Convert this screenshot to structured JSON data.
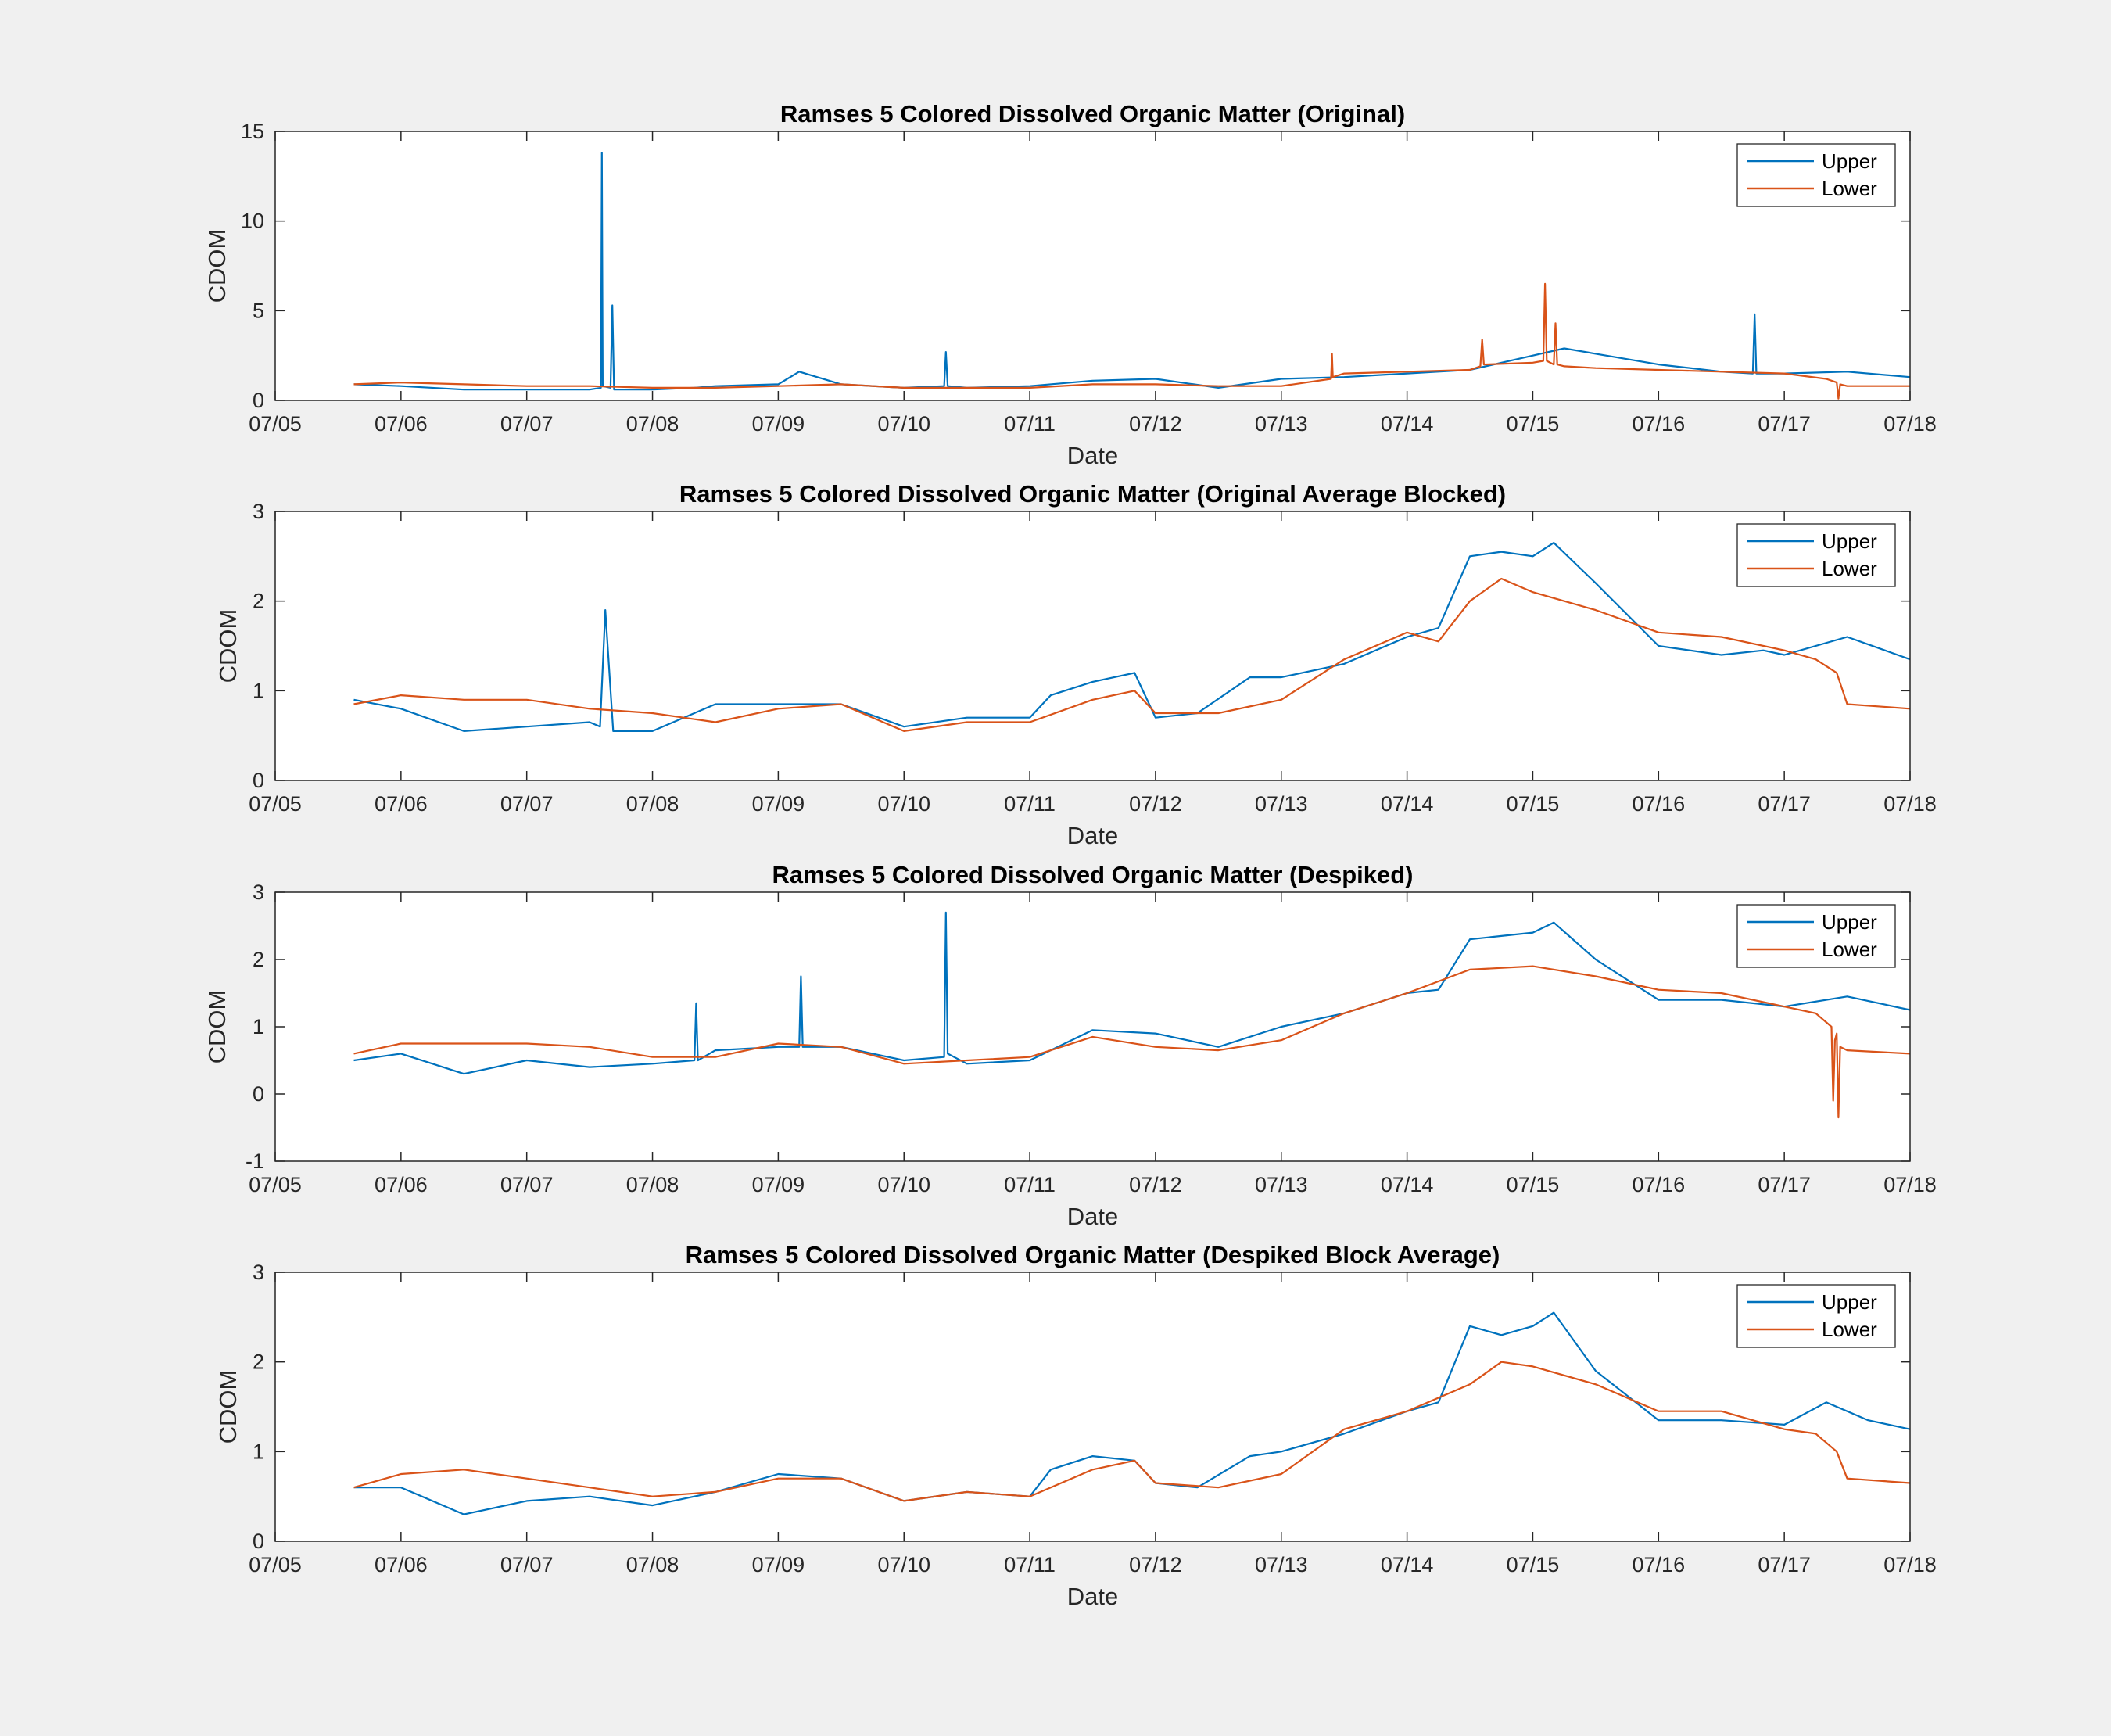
{
  "colors": {
    "upper": "#0072BD",
    "lower": "#D95319",
    "figure_bg": "#f0f0f0",
    "axes_bg": "#ffffff"
  },
  "chart_data": [
    {
      "type": "line",
      "title": "Ramses 5 Colored Dissolved Organic Matter (Original)",
      "xlabel": "Date",
      "ylabel": "CDOM",
      "xlim": [
        "07/05 00:00",
        "07/18 00:00"
      ],
      "xticks": [
        "07/05",
        "07/06",
        "07/07",
        "07/08",
        "07/09",
        "07/10",
        "07/11",
        "07/12",
        "07/13",
        "07/14",
        "07/15",
        "07/16",
        "07/17",
        "07/18"
      ],
      "ylim": [
        0,
        15
      ],
      "yticks": [
        0,
        5,
        10,
        15
      ],
      "grid": false,
      "legend": "top-right",
      "series": [
        {
          "name": "Upper",
          "x": [
            "07/05 15:00",
            "07/06 00:00",
            "07/06 12:00",
            "07/07 00:00",
            "07/07 12:00",
            "07/07 14:10",
            "07/07 14:20",
            "07/07 14:30",
            "07/07 16:00",
            "07/07 16:20",
            "07/07 16:40",
            "07/08 00:00",
            "07/08 08:00",
            "07/08 12:00",
            "07/09 00:00",
            "07/09 04:00",
            "07/09 12:00",
            "07/10 00:00",
            "07/10 07:40",
            "07/10 08:00",
            "07/10 08:20",
            "07/10 12:00",
            "07/11 00:00",
            "07/11 12:00",
            "07/12 00:00",
            "07/12 12:00",
            "07/13 00:00",
            "07/13 12:00",
            "07/14 00:00",
            "07/14 06:00",
            "07/14 12:00",
            "07/15 00:00",
            "07/15 06:00",
            "07/15 12:00",
            "07/16 00:00",
            "07/16 12:00",
            "07/16 18:00",
            "07/16 18:20",
            "07/16 18:40",
            "07/17 00:00",
            "07/17 12:00",
            "07/18 00:00"
          ],
          "y": [
            0.9,
            0.8,
            0.6,
            0.6,
            0.6,
            0.7,
            13.8,
            0.8,
            0.7,
            5.3,
            0.6,
            0.6,
            0.7,
            0.8,
            0.9,
            1.6,
            0.9,
            0.7,
            0.8,
            2.7,
            0.8,
            0.7,
            0.8,
            1.1,
            1.2,
            0.7,
            1.2,
            1.3,
            1.5,
            1.6,
            1.7,
            2.5,
            2.9,
            2.6,
            2.0,
            1.6,
            1.5,
            4.8,
            1.5,
            1.5,
            1.6,
            1.3
          ]
        },
        {
          "name": "Lower",
          "x": [
            "07/05 15:00",
            "07/06 00:00",
            "07/06 12:00",
            "07/07 00:00",
            "07/07 12:00",
            "07/08 00:00",
            "07/08 12:00",
            "07/09 00:00",
            "07/09 12:00",
            "07/10 00:00",
            "07/10 12:00",
            "07/11 00:00",
            "07/11 12:00",
            "07/12 00:00",
            "07/12 12:00",
            "07/13 00:00",
            "07/13 09:30",
            "07/13 09:40",
            "07/13 09:50",
            "07/13 12:00",
            "07/14 00:00",
            "07/14 12:00",
            "07/14 14:00",
            "07/14 14:20",
            "07/14 14:40",
            "07/15 00:00",
            "07/15 02:00",
            "07/15 02:20",
            "07/15 02:40",
            "07/15 04:00",
            "07/15 04:20",
            "07/15 04:40",
            "07/15 06:00",
            "07/15 12:00",
            "07/16 00:00",
            "07/16 12:00",
            "07/17 00:00",
            "07/17 08:00",
            "07/17 10:00",
            "07/17 10:20",
            "07/17 10:40",
            "07/17 12:00",
            "07/18 00:00"
          ],
          "y": [
            0.9,
            1.0,
            0.9,
            0.8,
            0.8,
            0.7,
            0.7,
            0.8,
            0.9,
            0.7,
            0.7,
            0.7,
            0.9,
            0.9,
            0.8,
            0.8,
            1.2,
            2.6,
            1.3,
            1.5,
            1.6,
            1.7,
            1.9,
            3.4,
            2.0,
            2.1,
            2.2,
            6.5,
            2.2,
            2.0,
            4.3,
            2.0,
            1.9,
            1.8,
            1.7,
            1.6,
            1.5,
            1.2,
            1.0,
            0.1,
            0.9,
            0.8,
            0.8
          ]
        }
      ]
    },
    {
      "type": "line",
      "title": "Ramses 5 Colored Dissolved Organic Matter (Original Average Blocked)",
      "xlabel": "Date",
      "ylabel": "CDOM",
      "xlim": [
        "07/05 00:00",
        "07/18 00:00"
      ],
      "xticks": [
        "07/05",
        "07/06",
        "07/07",
        "07/08",
        "07/09",
        "07/10",
        "07/11",
        "07/12",
        "07/13",
        "07/14",
        "07/15",
        "07/16",
        "07/17",
        "07/18"
      ],
      "ylim": [
        0,
        3
      ],
      "yticks": [
        0,
        1,
        2,
        3
      ],
      "grid": false,
      "legend": "top-right",
      "series": [
        {
          "name": "Upper",
          "x": [
            "07/05 15:00",
            "07/06 00:00",
            "07/06 12:00",
            "07/07 00:00",
            "07/07 12:00",
            "07/07 14:00",
            "07/07 15:00",
            "07/07 16:30",
            "07/08 00:00",
            "07/08 12:00",
            "07/09 00:00",
            "07/09 12:00",
            "07/10 00:00",
            "07/10 12:00",
            "07/11 00:00",
            "07/11 04:00",
            "07/11 12:00",
            "07/11 20:00",
            "07/12 00:00",
            "07/12 08:00",
            "07/12 18:00",
            "07/13 00:00",
            "07/13 12:00",
            "07/14 00:00",
            "07/14 06:00",
            "07/14 12:00",
            "07/14 18:00",
            "07/15 00:00",
            "07/15 04:00",
            "07/15 12:00",
            "07/16 00:00",
            "07/16 12:00",
            "07/16 20:00",
            "07/17 00:00",
            "07/17 12:00",
            "07/18 00:00"
          ],
          "y": [
            0.9,
            0.8,
            0.55,
            0.6,
            0.65,
            0.6,
            1.9,
            0.55,
            0.55,
            0.85,
            0.85,
            0.85,
            0.6,
            0.7,
            0.7,
            0.95,
            1.1,
            1.2,
            0.7,
            0.75,
            1.15,
            1.15,
            1.3,
            1.6,
            1.7,
            2.5,
            2.55,
            2.5,
            2.65,
            2.2,
            1.5,
            1.4,
            1.45,
            1.4,
            1.6,
            1.35
          ]
        },
        {
          "name": "Lower",
          "x": [
            "07/05 15:00",
            "07/06 00:00",
            "07/06 12:00",
            "07/07 00:00",
            "07/07 12:00",
            "07/08 00:00",
            "07/08 12:00",
            "07/09 00:00",
            "07/09 12:00",
            "07/10 00:00",
            "07/10 12:00",
            "07/11 00:00",
            "07/11 12:00",
            "07/11 20:00",
            "07/12 00:00",
            "07/12 12:00",
            "07/13 00:00",
            "07/13 12:00",
            "07/14 00:00",
            "07/14 06:00",
            "07/14 12:00",
            "07/14 18:00",
            "07/15 00:00",
            "07/15 12:00",
            "07/16 00:00",
            "07/16 12:00",
            "07/17 00:00",
            "07/17 06:00",
            "07/17 10:00",
            "07/17 12:00",
            "07/18 00:00"
          ],
          "y": [
            0.85,
            0.95,
            0.9,
            0.9,
            0.8,
            0.75,
            0.65,
            0.8,
            0.85,
            0.55,
            0.65,
            0.65,
            0.9,
            1.0,
            0.75,
            0.75,
            0.9,
            1.35,
            1.65,
            1.55,
            2.0,
            2.25,
            2.1,
            1.9,
            1.65,
            1.6,
            1.45,
            1.35,
            1.2,
            0.85,
            0.8
          ]
        }
      ]
    },
    {
      "type": "line",
      "title": "Ramses 5 Colored Dissolved Organic Matter (Despiked)",
      "xlabel": "Date",
      "ylabel": "CDOM",
      "xlim": [
        "07/05 00:00",
        "07/18 00:00"
      ],
      "xticks": [
        "07/05",
        "07/06",
        "07/07",
        "07/08",
        "07/09",
        "07/10",
        "07/11",
        "07/12",
        "07/13",
        "07/14",
        "07/15",
        "07/16",
        "07/17",
        "07/18"
      ],
      "ylim": [
        -1,
        3
      ],
      "yticks": [
        -1,
        0,
        1,
        2,
        3
      ],
      "grid": false,
      "legend": "top-right",
      "series": [
        {
          "name": "Upper",
          "x": [
            "07/05 15:00",
            "07/06 00:00",
            "07/06 12:00",
            "07/07 00:00",
            "07/07 12:00",
            "07/08 00:00",
            "07/08 08:00",
            "07/08 08:20",
            "07/08 08:40",
            "07/08 12:00",
            "07/09 00:00",
            "07/09 04:00",
            "07/09 04:20",
            "07/09 04:40",
            "07/09 12:00",
            "07/10 00:00",
            "07/10 07:40",
            "07/10 08:00",
            "07/10 08:20",
            "07/10 12:00",
            "07/11 00:00",
            "07/11 12:00",
            "07/12 00:00",
            "07/12 12:00",
            "07/13 00:00",
            "07/13 12:00",
            "07/14 00:00",
            "07/14 06:00",
            "07/14 12:00",
            "07/15 00:00",
            "07/15 04:00",
            "07/15 12:00",
            "07/16 00:00",
            "07/16 12:00",
            "07/17 00:00",
            "07/17 12:00",
            "07/18 00:00"
          ],
          "y": [
            0.5,
            0.6,
            0.3,
            0.5,
            0.4,
            0.45,
            0.5,
            1.35,
            0.5,
            0.65,
            0.7,
            0.7,
            1.75,
            0.7,
            0.7,
            0.5,
            0.55,
            2.7,
            0.6,
            0.45,
            0.5,
            0.95,
            0.9,
            0.7,
            1.0,
            1.2,
            1.5,
            1.55,
            2.3,
            2.4,
            2.55,
            2.0,
            1.4,
            1.4,
            1.3,
            1.45,
            1.25
          ]
        },
        {
          "name": "Lower",
          "x": [
            "07/05 15:00",
            "07/06 00:00",
            "07/06 12:00",
            "07/07 00:00",
            "07/07 12:00",
            "07/08 00:00",
            "07/08 12:00",
            "07/09 00:00",
            "07/09 12:00",
            "07/10 00:00",
            "07/10 12:00",
            "07/11 00:00",
            "07/11 12:00",
            "07/12 00:00",
            "07/12 12:00",
            "07/13 00:00",
            "07/13 12:00",
            "07/14 00:00",
            "07/14 12:00",
            "07/15 00:00",
            "07/15 12:00",
            "07/16 00:00",
            "07/16 12:00",
            "07/17 00:00",
            "07/17 06:00",
            "07/17 09:00",
            "07/17 09:20",
            "07/17 09:40",
            "07/17 10:00",
            "07/17 10:20",
            "07/17 10:40",
            "07/17 12:00",
            "07/18 00:00"
          ],
          "y": [
            0.6,
            0.75,
            0.75,
            0.75,
            0.7,
            0.55,
            0.55,
            0.75,
            0.7,
            0.45,
            0.5,
            0.55,
            0.85,
            0.7,
            0.65,
            0.8,
            1.2,
            1.5,
            1.85,
            1.9,
            1.75,
            1.55,
            1.5,
            1.3,
            1.2,
            1.0,
            -0.1,
            0.8,
            0.9,
            -0.35,
            0.7,
            0.65,
            0.6
          ]
        }
      ]
    },
    {
      "type": "line",
      "title": "Ramses 5 Colored Dissolved Organic Matter (Despiked Block Average)",
      "xlabel": "Date",
      "ylabel": "CDOM",
      "xlim": [
        "07/05 00:00",
        "07/18 00:00"
      ],
      "xticks": [
        "07/05",
        "07/06",
        "07/07",
        "07/08",
        "07/09",
        "07/10",
        "07/11",
        "07/12",
        "07/13",
        "07/14",
        "07/15",
        "07/16",
        "07/17",
        "07/18"
      ],
      "ylim": [
        0,
        3
      ],
      "yticks": [
        0,
        1,
        2,
        3
      ],
      "grid": false,
      "legend": "top-right",
      "series": [
        {
          "name": "Upper",
          "x": [
            "07/05 15:00",
            "07/06 00:00",
            "07/06 12:00",
            "07/07 00:00",
            "07/07 12:00",
            "07/08 00:00",
            "07/08 12:00",
            "07/09 00:00",
            "07/09 12:00",
            "07/10 00:00",
            "07/10 12:00",
            "07/11 00:00",
            "07/11 04:00",
            "07/11 12:00",
            "07/11 20:00",
            "07/12 00:00",
            "07/12 08:00",
            "07/12 18:00",
            "07/13 00:00",
            "07/13 12:00",
            "07/14 00:00",
            "07/14 06:00",
            "07/14 12:00",
            "07/14 18:00",
            "07/15 00:00",
            "07/15 04:00",
            "07/15 12:00",
            "07/16 00:00",
            "07/16 12:00",
            "07/17 00:00",
            "07/17 08:00",
            "07/17 16:00",
            "07/18 00:00"
          ],
          "y": [
            0.6,
            0.6,
            0.3,
            0.45,
            0.5,
            0.4,
            0.55,
            0.75,
            0.7,
            0.45,
            0.55,
            0.5,
            0.8,
            0.95,
            0.9,
            0.65,
            0.6,
            0.95,
            1.0,
            1.2,
            1.45,
            1.55,
            2.4,
            2.3,
            2.4,
            2.55,
            1.9,
            1.35,
            1.35,
            1.3,
            1.55,
            1.35,
            1.25
          ]
        },
        {
          "name": "Lower",
          "x": [
            "07/05 15:00",
            "07/06 00:00",
            "07/06 12:00",
            "07/07 00:00",
            "07/07 12:00",
            "07/08 00:00",
            "07/08 12:00",
            "07/09 00:00",
            "07/09 12:00",
            "07/10 00:00",
            "07/10 12:00",
            "07/11 00:00",
            "07/11 12:00",
            "07/11 20:00",
            "07/12 00:00",
            "07/12 12:00",
            "07/13 00:00",
            "07/13 12:00",
            "07/14 00:00",
            "07/14 06:00",
            "07/14 12:00",
            "07/14 18:00",
            "07/15 00:00",
            "07/15 12:00",
            "07/16 00:00",
            "07/16 12:00",
            "07/17 00:00",
            "07/17 06:00",
            "07/17 10:00",
            "07/17 12:00",
            "07/18 00:00"
          ],
          "y": [
            0.6,
            0.75,
            0.8,
            0.7,
            0.6,
            0.5,
            0.55,
            0.7,
            0.7,
            0.45,
            0.55,
            0.5,
            0.8,
            0.9,
            0.65,
            0.6,
            0.75,
            1.25,
            1.45,
            1.6,
            1.75,
            2.0,
            1.95,
            1.75,
            1.45,
            1.45,
            1.25,
            1.2,
            1.0,
            0.7,
            0.65
          ]
        }
      ]
    }
  ]
}
